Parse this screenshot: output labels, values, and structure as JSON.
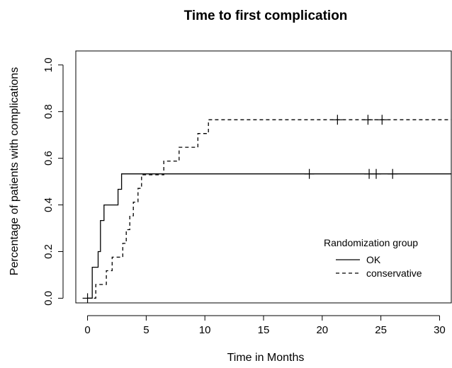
{
  "chart_data": {
    "type": "line",
    "subtype": "step (Kaplan-Meier cumulative incidence)",
    "title": "Time to first complication",
    "xlabel": "Time in Months",
    "ylabel": "Percentage of patients with complications",
    "xlim": [
      -1,
      31
    ],
    "ylim": [
      -0.02,
      1.06
    ],
    "x_ticks": [
      0,
      5,
      10,
      15,
      20,
      25,
      30
    ],
    "y_ticks": [
      0.0,
      0.2,
      0.4,
      0.6,
      0.8,
      1.0
    ],
    "x_tick_labels": [
      "0",
      "5",
      "10",
      "15",
      "20",
      "25",
      "30"
    ],
    "y_tick_labels": [
      "0.0",
      "0.2",
      "0.4",
      "0.6",
      "0.8",
      "1.0"
    ],
    "grid": false,
    "legend": {
      "title": "Randomization group",
      "position": "bottom-right",
      "entries": [
        {
          "label": "OK",
          "line_style": "solid"
        },
        {
          "label": "conservative",
          "line_style": "dashed"
        }
      ]
    },
    "series": [
      {
        "name": "OK",
        "line_style": "solid",
        "color": "#000000",
        "steps": [
          [
            0,
            0.0
          ],
          [
            0.4,
            0.133
          ],
          [
            0.9,
            0.2
          ],
          [
            1.1,
            0.333
          ],
          [
            1.4,
            0.4
          ],
          [
            2.6,
            0.467
          ],
          [
            2.9,
            0.533
          ],
          [
            31,
            0.533
          ]
        ],
        "censored": [
          [
            0,
            0.0
          ],
          [
            18.9,
            0.533
          ],
          [
            24.0,
            0.533
          ],
          [
            24.6,
            0.533
          ],
          [
            26.0,
            0.533
          ]
        ]
      },
      {
        "name": "conservative",
        "line_style": "dashed",
        "color": "#000000",
        "steps": [
          [
            0,
            0.0
          ],
          [
            0.7,
            0.059
          ],
          [
            1.6,
            0.118
          ],
          [
            2.1,
            0.176
          ],
          [
            3.0,
            0.235
          ],
          [
            3.3,
            0.294
          ],
          [
            3.6,
            0.353
          ],
          [
            3.9,
            0.412
          ],
          [
            4.3,
            0.471
          ],
          [
            4.6,
            0.529
          ],
          [
            6.5,
            0.588
          ],
          [
            7.8,
            0.647
          ],
          [
            9.4,
            0.706
          ],
          [
            10.3,
            0.765
          ],
          [
            31,
            0.765
          ]
        ],
        "censored": [
          [
            21.3,
            0.765
          ],
          [
            23.9,
            0.765
          ],
          [
            25.1,
            0.765
          ]
        ]
      }
    ]
  }
}
